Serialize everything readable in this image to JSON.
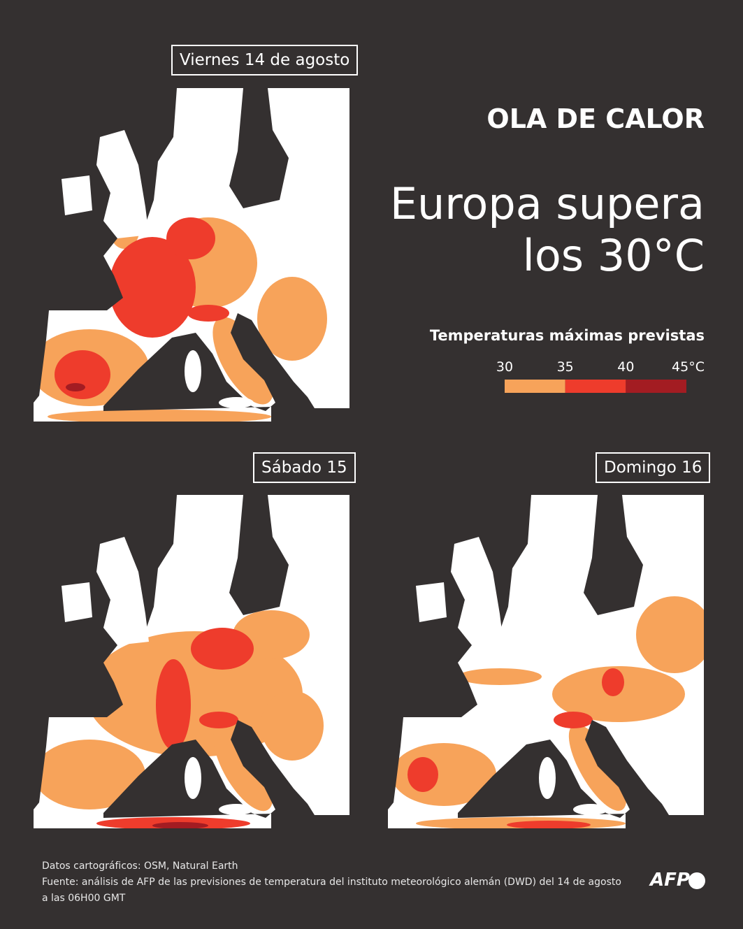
{
  "panels": [
    {
      "label": "Viernes 14 de agosto"
    },
    {
      "label": "Sábado 15"
    },
    {
      "label": "Domingo 16"
    }
  ],
  "header": {
    "kicker": "OLA DE CALOR",
    "title_lines": [
      "Europa supera",
      "los 30°C"
    ]
  },
  "legend": {
    "title": "Temperaturas máximas previstas",
    "ticks": [
      30,
      35,
      40,
      {
        "value": 45,
        "label": "45°C"
      }
    ],
    "colors": [
      "#f7a35a",
      "#ee3c2c",
      "#a31c22"
    ]
  },
  "footer": {
    "lines": [
      "Datos cartográficos: OSM, Natural Earth",
      "Fuente: análisis de AFP de las previsiones de temperatura del instituto meteorológico alemán (DWD) del 14 de agosto",
      "a las 06H00 GMT"
    ],
    "logo": "AFP"
  }
}
